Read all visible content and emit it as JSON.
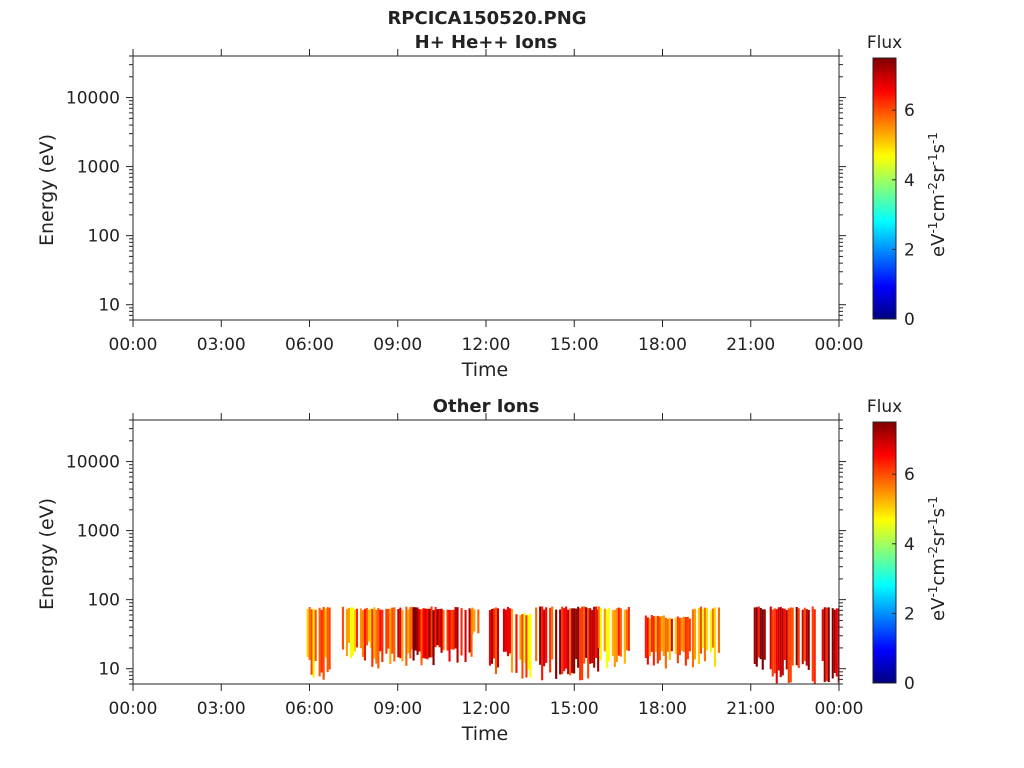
{
  "title": "RPCICA150520.PNG",
  "colorbar": {
    "label": "Flux",
    "unit_parts": [
      "eV",
      "-1",
      "cm",
      "-2",
      "sr",
      "-1",
      "s",
      "-1"
    ],
    "range": [
      0,
      7.5
    ],
    "ticks": [
      0,
      2,
      4,
      6
    ],
    "tick_labels": [
      "0",
      "2",
      "4",
      "6"
    ],
    "colormap": "jet",
    "colormap_stops": [
      "#00007f",
      "#0000ff",
      "#007fff",
      "#00ffff",
      "#7fff7f",
      "#ffff00",
      "#ff7f00",
      "#ff0000",
      "#7f0000"
    ]
  },
  "chart_data": [
    {
      "type": "heatmap",
      "title": "H+ He++ Ions",
      "xlabel": "Time",
      "ylabel": "Energy (eV)",
      "x_ticks": [
        "00:00",
        "03:00",
        "06:00",
        "09:00",
        "12:00",
        "15:00",
        "18:00",
        "21:00",
        "00:00"
      ],
      "xlim_hours": [
        0,
        24
      ],
      "y_scale": "log",
      "ylim": [
        6,
        40000
      ],
      "y_ticks": [
        10,
        100,
        1000,
        10000
      ],
      "y_tick_labels": [
        "10",
        "100",
        "1000",
        "10000"
      ],
      "grid": false,
      "flux_blocks": []
    },
    {
      "type": "heatmap",
      "title": "Other Ions",
      "xlabel": "Time",
      "ylabel": "Energy (eV)",
      "x_ticks": [
        "00:00",
        "03:00",
        "06:00",
        "09:00",
        "12:00",
        "15:00",
        "18:00",
        "21:00",
        "00:00"
      ],
      "xlim_hours": [
        0,
        24
      ],
      "y_scale": "log",
      "ylim": [
        6,
        40000
      ],
      "y_ticks": [
        10,
        100,
        1000,
        10000
      ],
      "y_tick_labels": [
        "10",
        "100",
        "1000",
        "10000"
      ],
      "grid": false,
      "flux_blocks": [
        {
          "t_start": 5.9,
          "t_end": 6.7,
          "e_min": 6,
          "e_max": 80,
          "flux": 5.4
        },
        {
          "t_start": 7.1,
          "t_end": 8.1,
          "e_min": 13,
          "e_max": 80,
          "flux": 5.6
        },
        {
          "t_start": 8.1,
          "t_end": 9.5,
          "e_min": 10,
          "e_max": 80,
          "flux": 6.1
        },
        {
          "t_start": 9.5,
          "t_end": 11.5,
          "e_min": 11,
          "e_max": 80,
          "flux": 6.6
        },
        {
          "t_start": 11.5,
          "t_end": 11.75,
          "e_min": 30,
          "e_max": 80,
          "flux": 5.3
        },
        {
          "t_start": 12.1,
          "t_end": 12.9,
          "e_min": 8,
          "e_max": 80,
          "flux": 6.3
        },
        {
          "t_start": 13.0,
          "t_end": 13.5,
          "e_min": 6,
          "e_max": 65,
          "flux": 5.5
        },
        {
          "t_start": 13.6,
          "t_end": 15.8,
          "e_min": 6,
          "e_max": 80,
          "flux": 6.6
        },
        {
          "t_start": 15.8,
          "t_end": 16.9,
          "e_min": 10,
          "e_max": 80,
          "flux": 5.6
        },
        {
          "t_start": 17.4,
          "t_end": 18.9,
          "e_min": 10,
          "e_max": 60,
          "flux": 5.8
        },
        {
          "t_start": 19.0,
          "t_end": 19.9,
          "e_min": 10,
          "e_max": 80,
          "flux": 5.2
        },
        {
          "t_start": 21.1,
          "t_end": 24.0,
          "e_min": 6,
          "e_max": 80,
          "flux": 6.9
        }
      ]
    }
  ]
}
